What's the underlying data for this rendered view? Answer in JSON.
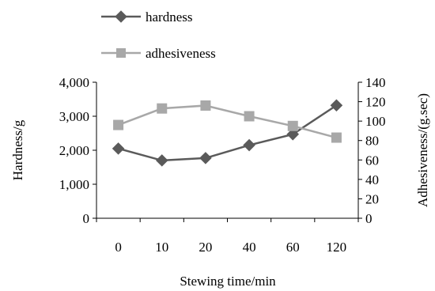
{
  "chart_data": {
    "type": "line",
    "xlabel": "Stewing time/min",
    "ylabel_left": "Hardness/g",
    "ylabel_right": "Adhesiveness/(g.sec)",
    "categories": [
      "0",
      "10",
      "20",
      "40",
      "60",
      "120"
    ],
    "ylim_left": [
      0,
      4000
    ],
    "yticks_left": [
      "0",
      "1,000",
      "2,000",
      "3,000",
      "4,000"
    ],
    "ylim_right": [
      0,
      140
    ],
    "yticks_right": [
      "0",
      "20",
      "40",
      "60",
      "80",
      "100",
      "120",
      "140"
    ],
    "grid": false,
    "legend_position": "top-left",
    "series": [
      {
        "name": "hardness",
        "axis": "left",
        "color": "#5a5a5a",
        "marker": "diamond",
        "values": [
          2050,
          1700,
          1770,
          2150,
          2470,
          3320
        ]
      },
      {
        "name": "adhesiveness",
        "axis": "right",
        "color": "#a8a8a8",
        "marker": "square",
        "values": [
          96,
          113,
          116,
          105,
          95,
          83
        ]
      }
    ]
  }
}
